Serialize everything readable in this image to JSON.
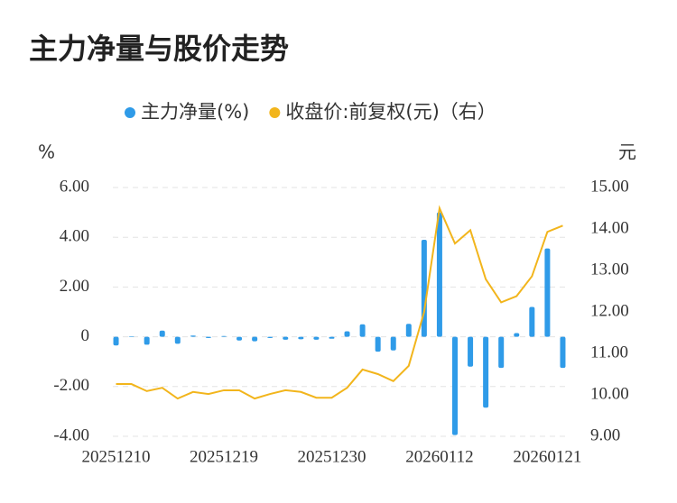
{
  "chart_data": {
    "type": "bar",
    "title": "主力净量与股价走势",
    "y_unit": "%",
    "y2_unit": "元",
    "categories": [
      "20251210",
      null,
      null,
      null,
      null,
      null,
      null,
      "20251219",
      null,
      null,
      null,
      null,
      null,
      null,
      "20251230",
      null,
      null,
      null,
      null,
      null,
      null,
      "20260112",
      null,
      null,
      null,
      null,
      null,
      null,
      "20260121",
      null
    ],
    "series": [
      {
        "name": "主力净量(%)",
        "type": "bar",
        "color": "#2f9be8",
        "values": [
          -0.35,
          0.02,
          -0.32,
          0.25,
          -0.28,
          0.05,
          -0.05,
          0.03,
          -0.15,
          -0.18,
          -0.05,
          -0.12,
          -0.1,
          -0.12,
          -0.08,
          0.22,
          0.5,
          -0.6,
          -0.55,
          0.52,
          3.9,
          5.0,
          -3.95,
          -1.2,
          -2.85,
          -1.25,
          0.15,
          1.2,
          3.55,
          -1.25
        ]
      },
      {
        "name": "收盘价:前复权(元)（右）",
        "type": "line",
        "axis": "y2",
        "color": "#f2b51c",
        "values": [
          10.26,
          10.26,
          10.09,
          10.17,
          9.91,
          10.07,
          10.02,
          10.11,
          10.11,
          9.91,
          10.02,
          10.11,
          10.07,
          9.93,
          9.93,
          10.17,
          10.61,
          10.5,
          10.33,
          10.7,
          12.0,
          14.5,
          13.65,
          13.97,
          12.79,
          12.23,
          12.38,
          12.86,
          13.93,
          14.08
        ]
      }
    ],
    "ylim": [
      -4,
      6
    ],
    "yticks": [
      {
        "value": -4,
        "label": "-4.00"
      },
      {
        "value": -2,
        "label": "-2.00"
      },
      0,
      {
        "value": 2,
        "label": "2.00"
      },
      {
        "value": 4,
        "label": "4.00"
      },
      {
        "value": 6,
        "label": "6.00"
      }
    ],
    "y2lim": [
      9,
      15
    ],
    "y2ticks": [
      {
        "value": 9,
        "label": "9.00"
      },
      {
        "value": 10,
        "label": "10.00"
      },
      {
        "value": 11,
        "label": "11.00"
      },
      {
        "value": 12,
        "label": "12.00"
      },
      {
        "value": 13,
        "label": "13.00"
      },
      {
        "value": 14,
        "label": "14.00"
      },
      {
        "value": 15,
        "label": "15.00"
      }
    ],
    "grid": true,
    "legend": "top"
  }
}
